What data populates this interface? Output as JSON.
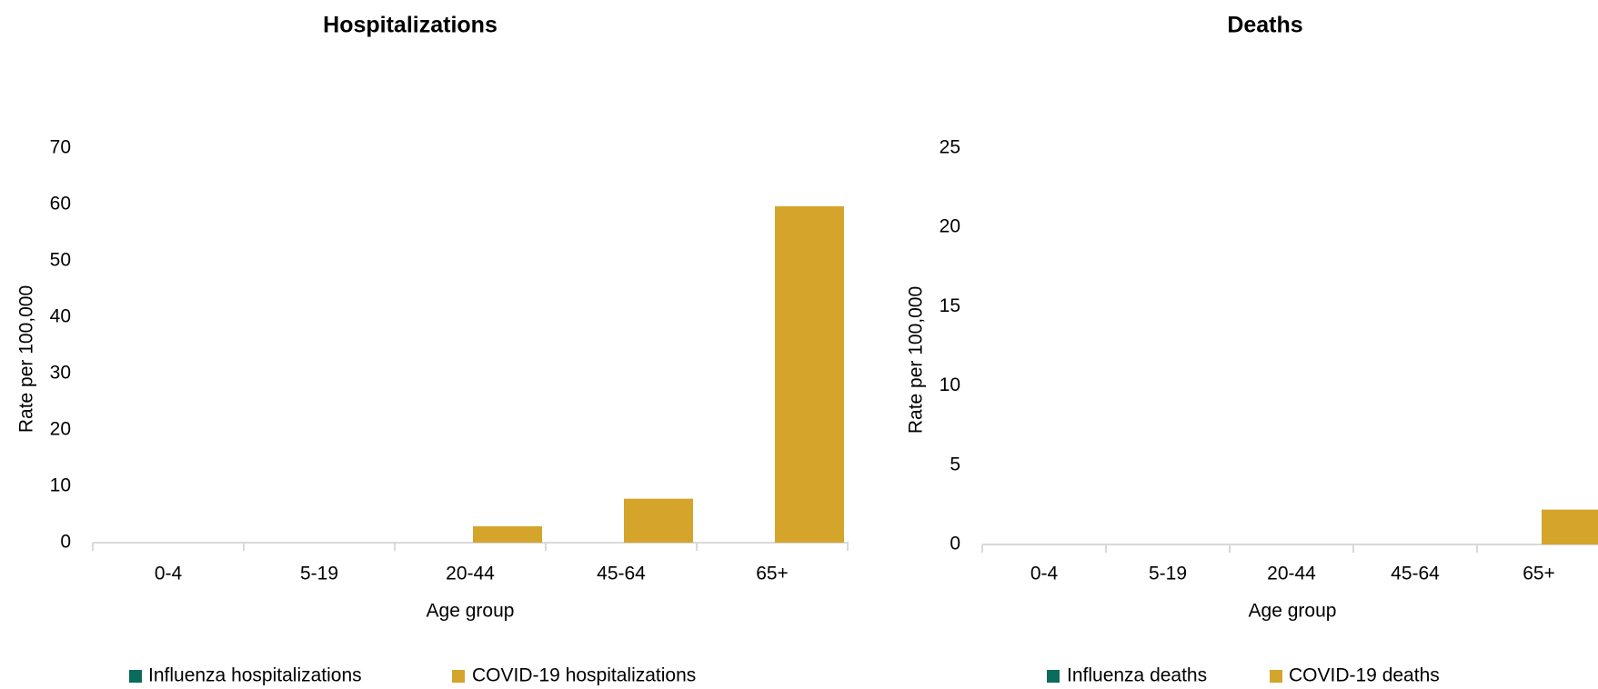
{
  "chart_data": [
    {
      "type": "bar",
      "title": "Hospitalizations",
      "xlabel": "Age group",
      "ylabel": "Rate per 100,000",
      "categories": [
        "0-4",
        "5-19",
        "20-44",
        "45-64",
        "65+"
      ],
      "ylim": [
        0,
        70
      ],
      "yticks": [
        0,
        10,
        20,
        30,
        40,
        50,
        60,
        70
      ],
      "grid": false,
      "legend": "bottom",
      "series": [
        {
          "name": "Influenza hospitalizations",
          "color": "#0b6b5c",
          "values": [
            0,
            0,
            0,
            0,
            0
          ]
        },
        {
          "name": "COVID-19 hospitalizations",
          "color": "#d4a52a",
          "values": [
            0,
            0,
            2.9,
            7.8,
            59.7
          ]
        }
      ]
    },
    {
      "type": "bar",
      "title": "Deaths",
      "xlabel": "Age group",
      "ylabel": "Rate per 100,000",
      "categories": [
        "0-4",
        "5-19",
        "20-44",
        "45-64",
        "65+"
      ],
      "ylim": [
        0,
        25
      ],
      "yticks": [
        0,
        5,
        10,
        15,
        20,
        25
      ],
      "grid": false,
      "legend": "bottom",
      "series": [
        {
          "name": "Influenza deaths",
          "color": "#0b6b5c",
          "values": [
            0,
            0,
            0,
            0,
            0
          ]
        },
        {
          "name": "COVID-19 deaths",
          "color": "#d4a52a",
          "values": [
            0,
            0,
            0,
            0,
            2.2
          ]
        }
      ]
    }
  ]
}
